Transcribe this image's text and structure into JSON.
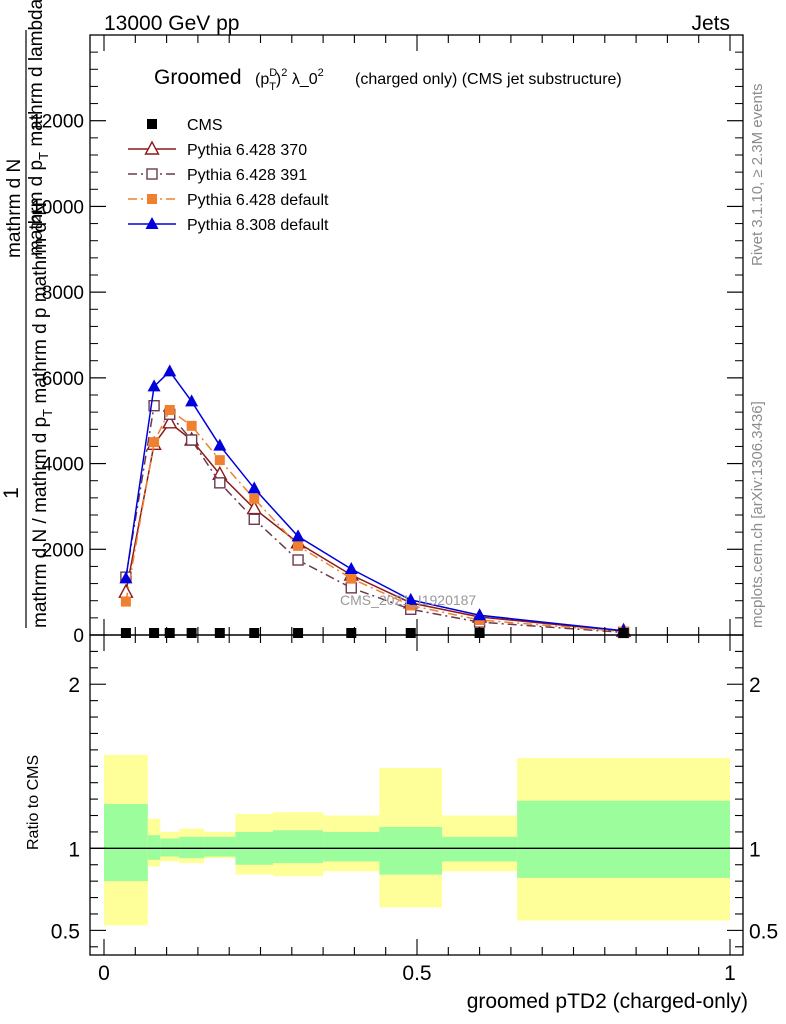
{
  "header": {
    "left": "13000 GeV pp",
    "right": "Jets"
  },
  "side_labels": {
    "rivet": "Rivet 3.1.10, ≥ 2.3M events",
    "mcplots": "mcplots.cern.ch [arXiv:1306.3436]"
  },
  "chart_data": {
    "type": "line",
    "title": {
      "prefix": "Groomed",
      "math": "(p_T^D)^2 λ_0^2",
      "suffix": "(charged only) (CMS jet substructure)"
    },
    "watermark": "CMS_2021_I1920187",
    "ylabel": {
      "numerator": "1",
      "part1": "mathrm d N / mathrm d p",
      "part1_sub": "T",
      "part2": "mathrm d p mathrm d²N",
      "part3": "mathrm d N"
    },
    "xlabel": "groomed pTD2 (charged-only)",
    "ratio_ylabel": "Ratio to CMS",
    "xlim": [
      0,
      1
    ],
    "ylim": [
      0,
      14000
    ],
    "ratio_ylim": [
      0.35,
      2.3
    ],
    "x_ticks": [
      {
        "value": 0,
        "label": "0"
      },
      {
        "value": 0.5,
        "label": "0.5"
      },
      {
        "value": 1,
        "label": "1"
      }
    ],
    "y_ticks": [
      {
        "value": 0,
        "label": "0"
      },
      {
        "value": 2000,
        "label": "2000"
      },
      {
        "value": 4000,
        "label": "4000"
      },
      {
        "value": 6000,
        "label": "6000"
      },
      {
        "value": 8000,
        "label": "8000"
      },
      {
        "value": 10000,
        "label": "10000"
      },
      {
        "value": 12000,
        "label": "12000"
      }
    ],
    "ratio_ticks": [
      {
        "value": 0.5,
        "label": "0.5"
      },
      {
        "value": 1,
        "label": "1"
      },
      {
        "value": 2,
        "label": "2"
      }
    ],
    "x": [
      0.035,
      0.08,
      0.105,
      0.14,
      0.185,
      0.24,
      0.31,
      0.395,
      0.49,
      0.6,
      0.83
    ],
    "series": [
      {
        "name": "CMS",
        "color": "#000000",
        "marker": "square-filled",
        "line": "none",
        "values": [
          18,
          18,
          18,
          18,
          18,
          18,
          18,
          18,
          18,
          18,
          18
        ]
      },
      {
        "name": "Pythia 6.428 370",
        "color": "#8b1a1a",
        "marker": "triangle-open",
        "line": "solid",
        "values": [
          1000,
          4450,
          4950,
          4550,
          3750,
          2950,
          2150,
          1400,
          750,
          420,
          90
        ]
      },
      {
        "name": "Pythia 6.428 391",
        "color": "#6b3a50",
        "marker": "square-open",
        "line": "dashdot",
        "values": [
          1350,
          5350,
          5150,
          4550,
          3550,
          2700,
          1750,
          1100,
          600,
          300,
          60
        ]
      },
      {
        "name": "Pythia 6.428 default",
        "color": "#f08030",
        "marker": "square-filled",
        "line": "dashdot",
        "values": [
          780,
          4500,
          5250,
          4880,
          4080,
          3180,
          2080,
          1320,
          690,
          350,
          80
        ]
      },
      {
        "name": "Pythia 8.308 default",
        "color": "#0000dd",
        "marker": "triangle-filled",
        "line": "solid",
        "values": [
          1320,
          5800,
          6150,
          5450,
          4420,
          3420,
          2300,
          1540,
          820,
          460,
          100
        ]
      }
    ],
    "ratio_bands": {
      "edges": [
        0.0,
        0.07,
        0.09,
        0.12,
        0.16,
        0.21,
        0.27,
        0.35,
        0.44,
        0.54,
        0.66,
        1.0
      ],
      "stat": [
        [
          0.8,
          1.27
        ],
        [
          0.93,
          1.08
        ],
        [
          0.95,
          1.06
        ],
        [
          0.94,
          1.07
        ],
        [
          0.95,
          1.07
        ],
        [
          0.9,
          1.1
        ],
        [
          0.91,
          1.11
        ],
        [
          0.92,
          1.1
        ],
        [
          0.84,
          1.13
        ],
        [
          0.92,
          1.07
        ],
        [
          0.82,
          1.29
        ]
      ],
      "total": [
        [
          0.53,
          1.57
        ],
        [
          0.89,
          1.18
        ],
        [
          0.92,
          1.1
        ],
        [
          0.91,
          1.12
        ],
        [
          0.94,
          1.1
        ],
        [
          0.84,
          1.21
        ],
        [
          0.83,
          1.22
        ],
        [
          0.86,
          1.2
        ],
        [
          0.64,
          1.49
        ],
        [
          0.86,
          1.2
        ],
        [
          0.56,
          1.55
        ]
      ],
      "stat_color": "#9bfd9b",
      "total_color": "#ffff99"
    }
  }
}
